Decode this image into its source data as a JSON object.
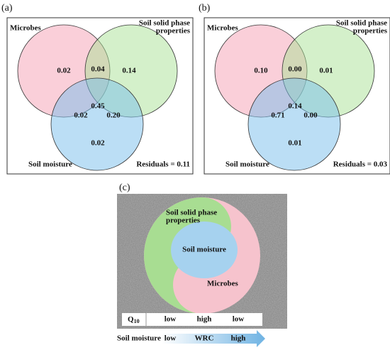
{
  "panels": [
    {
      "label": "(a)",
      "sets": [
        "Microbes",
        "Soil solid phase",
        "properties",
        "Soil moisture"
      ],
      "residuals": "Residuals = 0.11",
      "regions": {
        "microbes_only": "0.02",
        "microbes_solid": "0.04",
        "solid_only": "0.14",
        "all": "0.45",
        "microbes_moisture": "0.02",
        "solid_moisture": "0.20",
        "moisture_only": "0.02"
      }
    },
    {
      "label": "(b)",
      "sets": [
        "Microbes",
        "Soil solid phase",
        "properties",
        "Soil moisture"
      ],
      "residuals": "Residuals = 0.03",
      "regions": {
        "microbes_only": "0.10",
        "microbes_solid": "0.00",
        "solid_only": "0.01",
        "all": "0.14",
        "microbes_moisture": "0.71",
        "solid_moisture": "0.00",
        "moisture_only": "0.01"
      }
    }
  ],
  "panel_c": {
    "label": "(c)",
    "solid": [
      "Soil solid phase",
      "properties"
    ],
    "moisture": "Soil moisture",
    "microbes": "Microbes",
    "q10": {
      "base": "Q",
      "sub": "10",
      "levels": [
        "low",
        "high",
        "low"
      ]
    },
    "axis": {
      "name": "Soil moisture",
      "low": "low",
      "mid": "WRC",
      "high": "high"
    }
  }
}
